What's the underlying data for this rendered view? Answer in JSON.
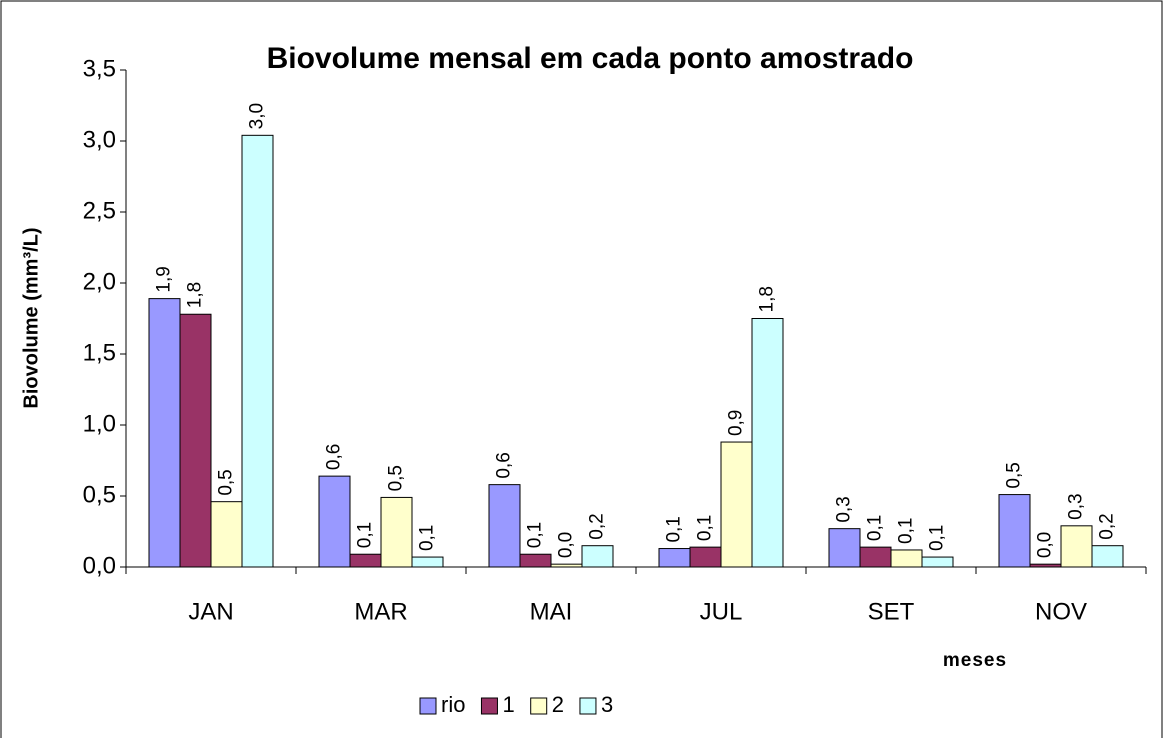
{
  "chart_data": {
    "type": "bar",
    "title": "Biovolume mensal em cada ponto amostrado",
    "y_label": "Biovolume (mm³/L)",
    "x_label": "meses",
    "categories": [
      "JAN",
      "MAR",
      "MAI",
      "JUL",
      "SET",
      "NOV"
    ],
    "series": [
      {
        "name": "rio",
        "color": "#9999ff",
        "values": [
          1.89,
          0.64,
          0.58,
          0.13,
          0.27,
          0.51
        ],
        "value_labels": [
          "1,9",
          "0,6",
          "0,6",
          "0,1",
          "0,3",
          "0,5"
        ]
      },
      {
        "name": "1",
        "color": "#993366",
        "values": [
          1.78,
          0.09,
          0.09,
          0.14,
          0.14,
          0.02
        ],
        "value_labels": [
          "1,8",
          "0,1",
          "0,1",
          "0,1",
          "0,1",
          "0,0"
        ]
      },
      {
        "name": "2",
        "color": "#ffffcc",
        "values": [
          0.46,
          0.49,
          0.02,
          0.88,
          0.12,
          0.29
        ],
        "value_labels": [
          "0,5",
          "0,5",
          "0,0",
          "0,9",
          "0,1",
          "0,3"
        ]
      },
      {
        "name": "3",
        "color": "#ccffff",
        "values": [
          3.04,
          0.07,
          0.15,
          1.75,
          0.07,
          0.15
        ],
        "value_labels": [
          "3,0",
          "0,1",
          "0,2",
          "1,8",
          "0,1",
          "0,2"
        ]
      }
    ],
    "ylim": [
      0,
      3.5
    ],
    "yticks": [
      {
        "value": 0,
        "label": "0,0"
      },
      {
        "value": 0.5,
        "label": "0,5"
      },
      {
        "value": 1,
        "label": "1,0"
      },
      {
        "value": 1.5,
        "label": "1,5"
      },
      {
        "value": 2,
        "label": "2,0"
      },
      {
        "value": 2.5,
        "label": "2,5"
      },
      {
        "value": 3,
        "label": "3,0"
      },
      {
        "value": 3.5,
        "label": "3,5"
      }
    ],
    "legend": "bottom"
  }
}
